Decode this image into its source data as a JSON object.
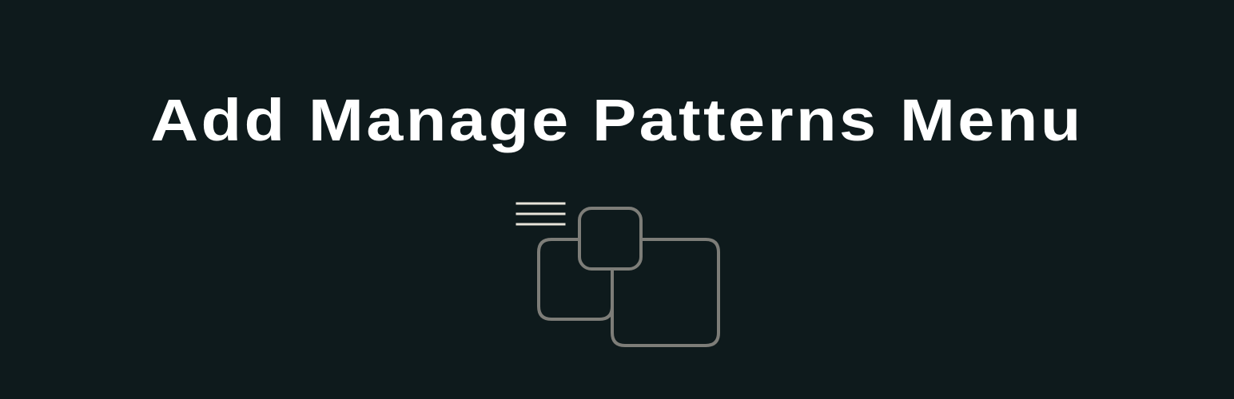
{
  "banner": {
    "title": "Add Manage Patterns Menu",
    "icon": "patterns-icon",
    "colors": {
      "background": "#0e1a1c",
      "title": "#ffffff",
      "icon_stroke": "#7d7d78",
      "icon_lines": "#e8e4da"
    }
  }
}
